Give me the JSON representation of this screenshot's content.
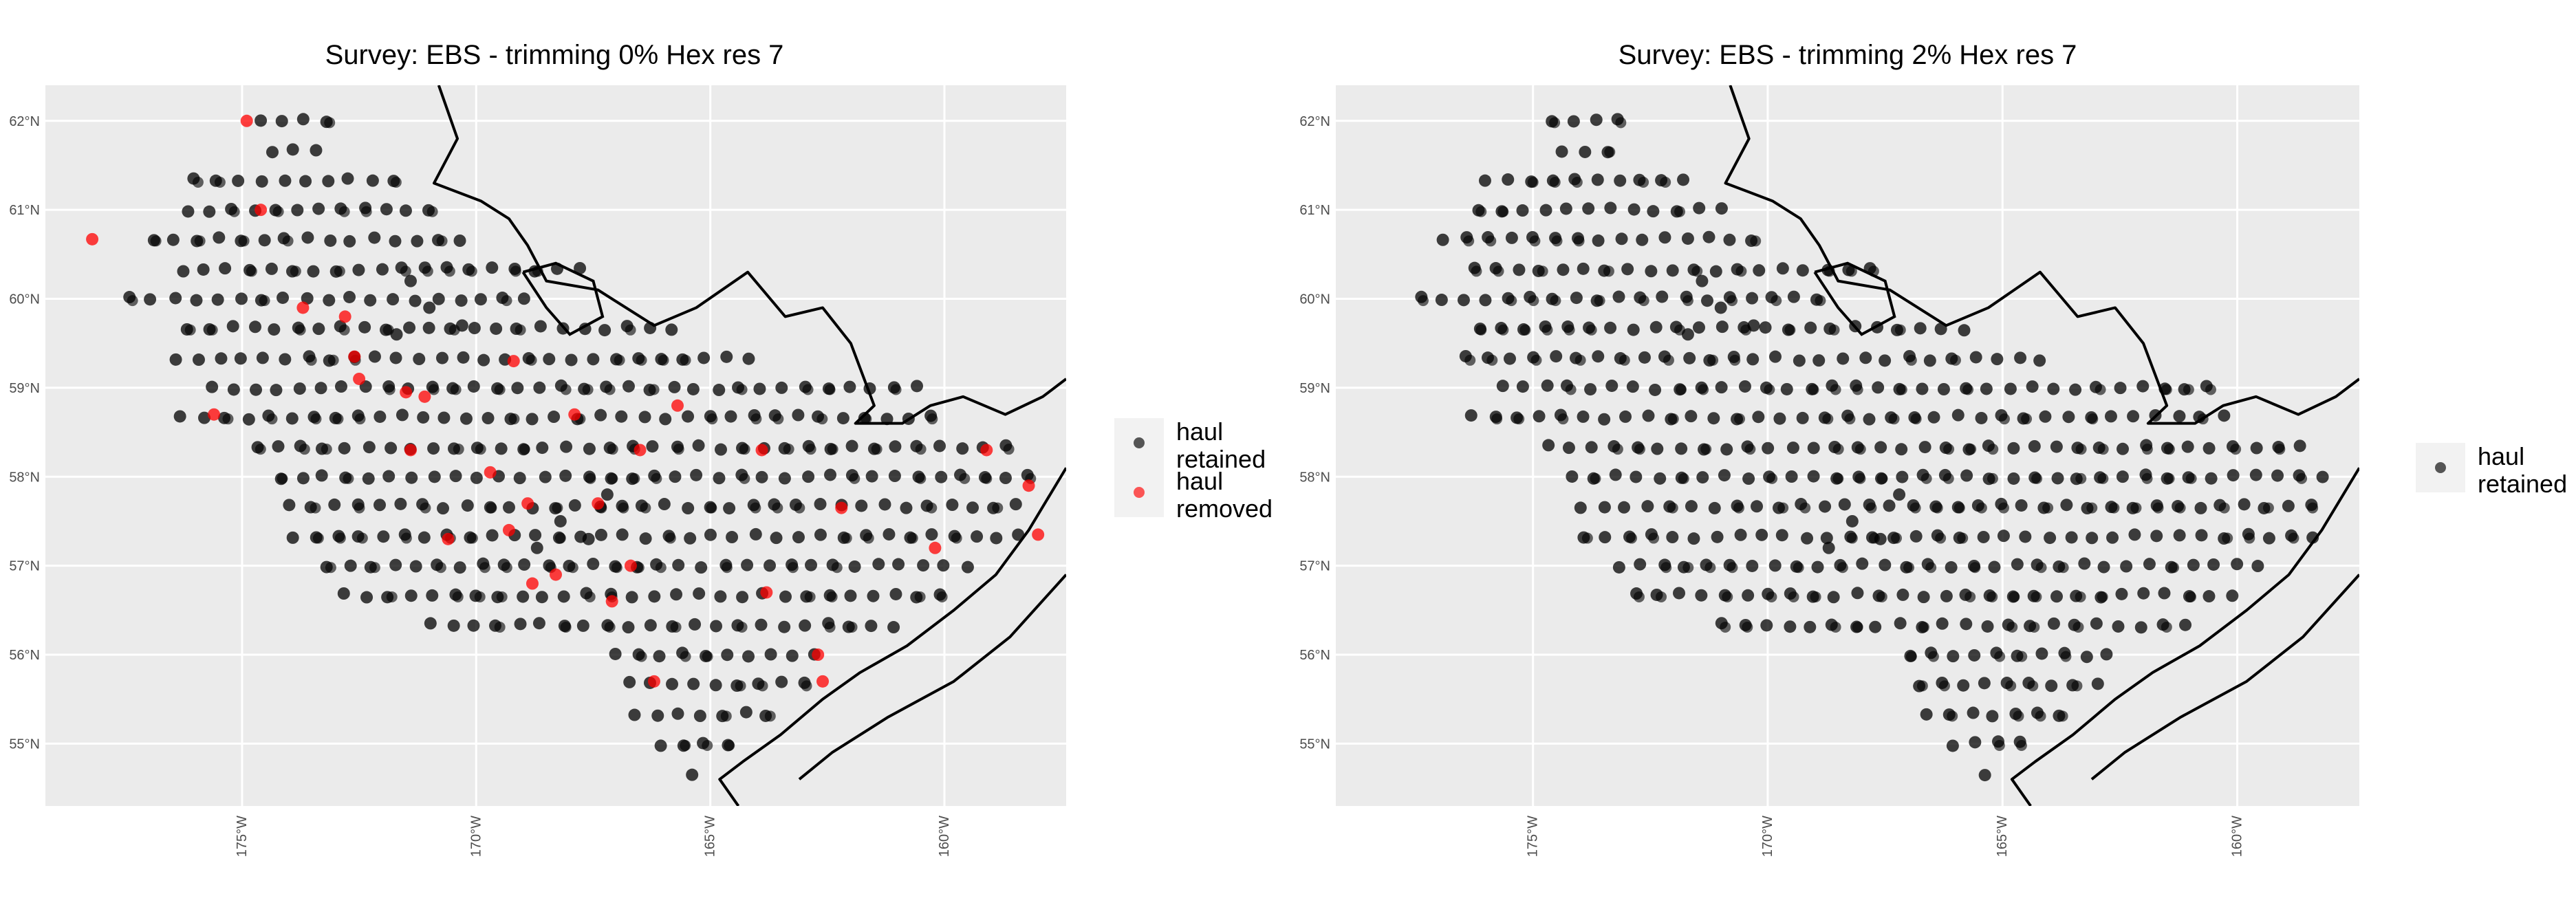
{
  "figure": {
    "panels": [
      {
        "title": "Survey: EBS - trimming 0% Hex res 7"
      },
      {
        "title": "Survey: EBS - trimming 2% Hex res 7"
      }
    ]
  },
  "chart_data": [
    {
      "type": "scatter",
      "title": "Survey: EBS - trimming 0% Hex res 7",
      "xlabel": "",
      "ylabel": "",
      "x_ticks": [
        "175°W",
        "170°W",
        "165°W",
        "160°W"
      ],
      "x_tick_values": [
        -175,
        -170,
        -165,
        -160
      ],
      "y_ticks": [
        "55°N",
        "56°N",
        "57°N",
        "58°N",
        "59°N",
        "60°N",
        "61°N",
        "62°N"
      ],
      "y_tick_values": [
        55,
        56,
        57,
        58,
        59,
        60,
        61,
        62
      ],
      "xlim": [
        -179.2,
        -157.4
      ],
      "ylim": [
        54.3,
        62.4
      ],
      "grid": true,
      "legend_position": "right",
      "legend": [
        {
          "label": "haul retained",
          "color": "#000000"
        },
        {
          "label": "haul removed",
          "color": "#ff0000"
        }
      ],
      "series": [
        {
          "name": "haul retained",
          "color": "#000000",
          "description": "survey haul locations on a regular grid across the eastern Bering Sea shelf"
        },
        {
          "name": "haul removed",
          "color": "#ff0000",
          "points": [
            [
              -174.9,
              62.0
            ],
            [
              -178.2,
              60.67
            ],
            [
              -174.6,
              61.0
            ],
            [
              -173.7,
              59.9
            ],
            [
              -172.8,
              59.8
            ],
            [
              -172.6,
              59.35
            ],
            [
              -171.5,
              58.95
            ],
            [
              -175.6,
              58.7
            ],
            [
              -172.5,
              59.1
            ],
            [
              -171.1,
              58.9
            ],
            [
              -171.4,
              58.3
            ],
            [
              -169.2,
              59.3
            ],
            [
              -166.5,
              58.3
            ],
            [
              -167.9,
              58.7
            ],
            [
              -165.7,
              58.8
            ],
            [
              -168.9,
              57.7
            ],
            [
              -169.3,
              57.4
            ],
            [
              -167.4,
              57.7
            ],
            [
              -166.7,
              57.0
            ],
            [
              -170.6,
              57.3
            ],
            [
              -168.3,
              56.9
            ],
            [
              -168.8,
              56.8
            ],
            [
              -167.1,
              56.6
            ],
            [
              -163.9,
              58.3
            ],
            [
              -162.2,
              57.65
            ],
            [
              -163.8,
              56.7
            ],
            [
              -162.7,
              56.0
            ],
            [
              -162.6,
              55.7
            ],
            [
              -166.2,
              55.7
            ],
            [
              -160.2,
              57.2
            ],
            [
              -159.1,
              58.3
            ],
            [
              -158.2,
              57.9
            ],
            [
              -158.0,
              57.35
            ],
            [
              -169.7,
              58.05
            ]
          ]
        }
      ]
    },
    {
      "type": "scatter",
      "title": "Survey: EBS - trimming 2% Hex res 7",
      "xlabel": "",
      "ylabel": "",
      "x_ticks": [
        "175°W",
        "170°W",
        "165°W",
        "160°W"
      ],
      "x_tick_values": [
        -175,
        -170,
        -165,
        -160
      ],
      "y_ticks": [
        "55°N",
        "56°N",
        "57°N",
        "58°N",
        "59°N",
        "60°N",
        "61°N",
        "62°N"
      ],
      "y_tick_values": [
        55,
        56,
        57,
        58,
        59,
        60,
        61,
        62
      ],
      "xlim": [
        -179.2,
        -157.4
      ],
      "ylim": [
        54.3,
        62.4
      ],
      "grid": true,
      "legend_position": "right",
      "legend": [
        {
          "label": "haul retained",
          "color": "#000000"
        }
      ],
      "series": [
        {
          "name": "haul retained",
          "color": "#000000",
          "description": "survey haul locations on a regular grid across the eastern Bering Sea shelf"
        }
      ]
    }
  ],
  "legends": [
    {
      "items": [
        {
          "label": "haul\nretained"
        },
        {
          "label": "haul\nremoved"
        }
      ]
    },
    {
      "items": [
        {
          "label": "haul\nretained"
        }
      ]
    }
  ]
}
